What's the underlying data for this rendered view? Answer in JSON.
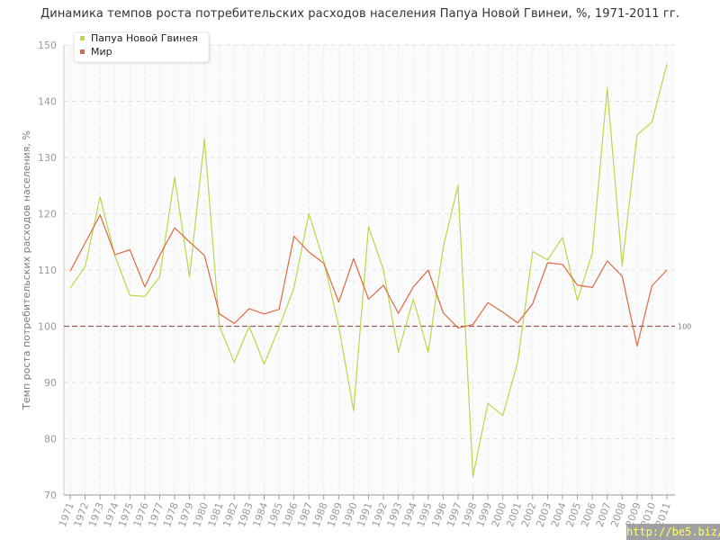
{
  "title": "Динамика темпов роста потребительских расходов населения Папуа Новой Гвинеи, %, 1971-2011 гг.",
  "watermark": "http://be5.biz/",
  "chart_data": {
    "type": "line",
    "title": "Динамика темпов роста потребительских расходов населения Папуа Новой Гвинеи, %, 1971-2011 гг.",
    "xlabel": "",
    "ylabel": "Темп роста потребительских расходов населения, %",
    "ylim": [
      70,
      150
    ],
    "yticks": [
      70,
      80,
      90,
      100,
      110,
      120,
      130,
      140,
      150
    ],
    "grid": true,
    "legend_position": "top-left",
    "x": [
      "1971",
      "1972",
      "1973",
      "1974",
      "1975",
      "1976",
      "1977",
      "1978",
      "1979",
      "1980",
      "1981",
      "1982",
      "1983",
      "1984",
      "1985",
      "1986",
      "1987",
      "1988",
      "1989",
      "1990",
      "1991",
      "1992",
      "1993",
      "1994",
      "1995",
      "1996",
      "1997",
      "1998",
      "1999",
      "2000",
      "2001",
      "2002",
      "2003",
      "2004",
      "2005",
      "2006",
      "2007",
      "2008",
      "2009",
      "2010",
      "2011"
    ],
    "series": [
      {
        "name": "Папуа Новой Гвинея",
        "color": "#b8d84a",
        "values": [
          106.8,
          110.6,
          123.0,
          112.5,
          105.5,
          105.3,
          108.8,
          126.5,
          108.8,
          133.3,
          100.0,
          93.6,
          100.0,
          93.3,
          99.8,
          106.8,
          120.0,
          111.5,
          100.0,
          85.0,
          117.7,
          110.0,
          95.4,
          104.8,
          95.4,
          114.0,
          125.0,
          73.3,
          86.3,
          84.1,
          93.7,
          113.3,
          111.8,
          115.8,
          104.6,
          113.0,
          142.3,
          110.8,
          134.0,
          136.3,
          146.6
        ]
      },
      {
        "name": "Мир",
        "color": "#dd6a40",
        "values": [
          109.8,
          114.8,
          119.8,
          112.7,
          113.6,
          107.0,
          112.6,
          117.5,
          115.0,
          112.6,
          102.2,
          100.5,
          103.1,
          102.2,
          103.0,
          116.0,
          113.2,
          111.2,
          104.3,
          112.0,
          104.8,
          107.3,
          102.3,
          107.0,
          110.0,
          102.4,
          99.7,
          100.3,
          104.2,
          102.5,
          100.6,
          104.0,
          111.3,
          111.0,
          107.3,
          106.9,
          111.6,
          108.9,
          96.5,
          107.2,
          110.0
        ]
      }
    ],
    "reference_line": {
      "value": 100,
      "label": "100",
      "color": "#a05a5a"
    }
  }
}
